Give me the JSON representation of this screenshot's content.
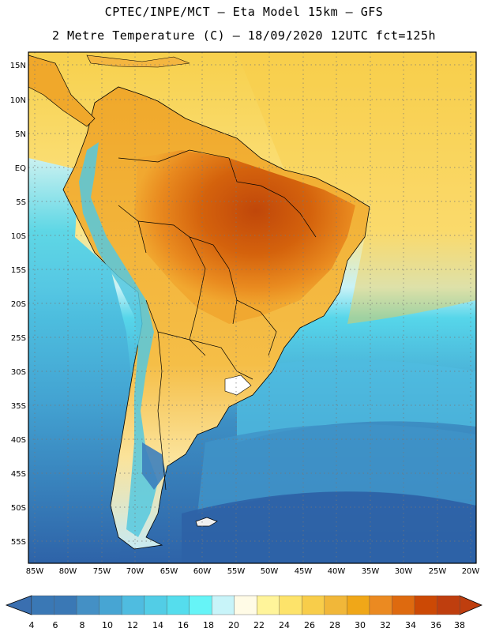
{
  "header": {
    "line1": "CPTEC/INPE/MCT –  Eta Model 15km – GFS",
    "line2": "2 Metre Temperature (C) – 18/09/2020 12UTC fct=125h"
  },
  "axes": {
    "lat_labels": [
      "15N",
      "10N",
      "5N",
      "EQ",
      "5S",
      "10S",
      "15S",
      "20S",
      "25S",
      "30S",
      "35S",
      "40S",
      "45S",
      "50S",
      "55S"
    ],
    "lon_labels": [
      "85W",
      "80W",
      "75W",
      "70W",
      "65W",
      "60W",
      "55W",
      "50W",
      "45W",
      "40W",
      "35W",
      "30W",
      "25W",
      "20W"
    ]
  },
  "colorbar": {
    "labels": [
      "4",
      "6",
      "8",
      "10",
      "12",
      "14",
      "16",
      "18",
      "20",
      "22",
      "24",
      "26",
      "28",
      "30",
      "32",
      "34",
      "36",
      "38"
    ],
    "colors": [
      "#3a78b5",
      "#3a78b5",
      "#4490c5",
      "#47a5d3",
      "#4fbce0",
      "#52cde6",
      "#55dded",
      "#66f4f7",
      "#c8f4f9",
      "#fffbe6",
      "#fff49a",
      "#fde36a",
      "#f8cd4a",
      "#f1b739",
      "#f0a718",
      "#eb8a21",
      "#de6a0f",
      "#cc4905",
      "#bf3e0e"
    ],
    "low_arrow_color": "#3a6fb0",
    "high_arrow_color": "#bf3e0e"
  },
  "map_colors": {
    "ocean_tropics": "#fadc5a",
    "ocean_south": "#2a68a8",
    "land_hot": "#f0a718",
    "interior_hottest": "#c9540a",
    "andes_cold": "#55c8df",
    "border": "#000000"
  }
}
